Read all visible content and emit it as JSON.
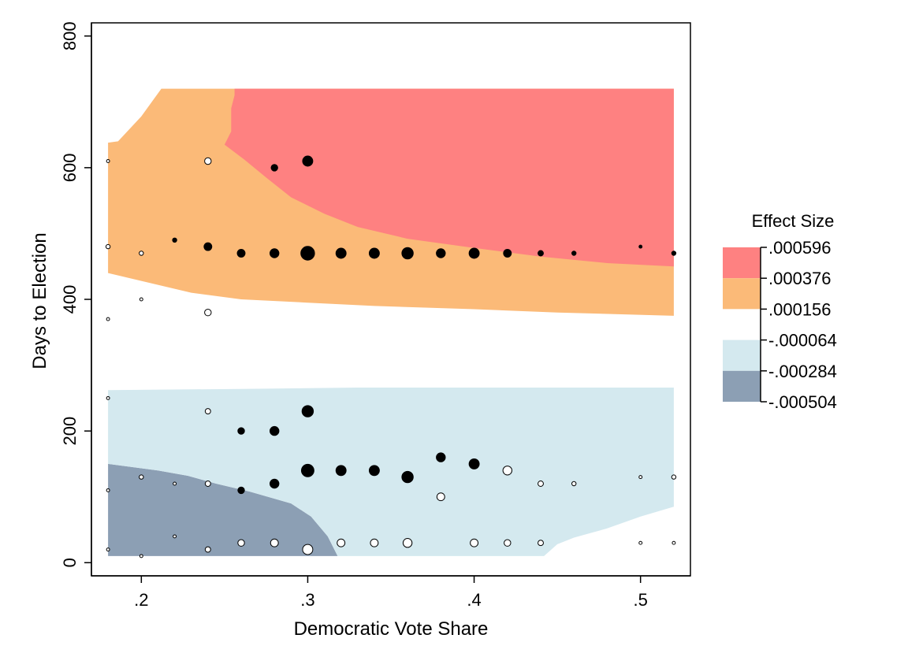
{
  "chart_data": {
    "type": "scatter",
    "subtype": "contour-with-bubbles",
    "xlabel": "Democratic Vote Share",
    "ylabel": "Days to Election",
    "xlim": [
      0.17,
      0.53
    ],
    "ylim": [
      -20,
      820
    ],
    "x_ticks": [
      0.2,
      0.3,
      0.4,
      0.5
    ],
    "x_tick_labels": [
      ".2",
      ".3",
      ".4",
      ".5"
    ],
    "y_ticks": [
      0,
      200,
      400,
      600,
      800
    ],
    "y_tick_labels": [
      "0",
      "200",
      "400",
      "600",
      "800"
    ],
    "grid": false,
    "legend": {
      "title": "Effect Size",
      "placement": "right",
      "bands": [
        {
          "color": "#8c9fb4"
        },
        {
          "color": "#d4e9ef"
        },
        {
          "color": "#ffffff"
        },
        {
          "color": "#fbba78"
        },
        {
          "color": "#fe8181"
        }
      ],
      "breaks": [
        ".000596",
        ".000376",
        ".000156",
        "-.000064",
        "-.000284",
        "-.000504"
      ]
    },
    "contour_regions": [
      {
        "level": "-.000504 to -.000284",
        "color": "#8c9fb4",
        "polygon": [
          [
            0.18,
            10
          ],
          [
            0.318,
            10
          ],
          [
            0.312,
            40
          ],
          [
            0.302,
            70
          ],
          [
            0.29,
            90
          ],
          [
            0.265,
            108
          ],
          [
            0.245,
            120
          ],
          [
            0.228,
            132
          ],
          [
            0.21,
            140
          ],
          [
            0.18,
            150
          ]
        ]
      },
      {
        "level": "-.000284 to -.000064",
        "color": "#d4e9ef",
        "polygon": [
          [
            0.18,
            150
          ],
          [
            0.18,
            262
          ],
          [
            0.26,
            264
          ],
          [
            0.33,
            266
          ],
          [
            0.4,
            266
          ],
          [
            0.47,
            266
          ],
          [
            0.52,
            266
          ],
          [
            0.52,
            85
          ],
          [
            0.5,
            70
          ],
          [
            0.48,
            52
          ],
          [
            0.46,
            38
          ],
          [
            0.45,
            28
          ],
          [
            0.442,
            10
          ],
          [
            0.318,
            10
          ],
          [
            0.312,
            40
          ],
          [
            0.302,
            70
          ],
          [
            0.29,
            90
          ],
          [
            0.265,
            108
          ],
          [
            0.245,
            120
          ],
          [
            0.228,
            132
          ],
          [
            0.21,
            140
          ]
        ]
      },
      {
        "level": ".000156 to .000376",
        "color": "#fbba78",
        "polygon": [
          [
            0.18,
            460
          ],
          [
            0.18,
            638
          ],
          [
            0.186,
            640
          ],
          [
            0.2,
            678
          ],
          [
            0.212,
            720
          ],
          [
            0.52,
            720
          ],
          [
            0.52,
            375
          ],
          [
            0.45,
            380
          ],
          [
            0.4,
            385
          ],
          [
            0.34,
            390
          ],
          [
            0.3,
            395
          ],
          [
            0.26,
            400
          ],
          [
            0.23,
            410
          ],
          [
            0.2,
            428
          ],
          [
            0.18,
            440
          ]
        ]
      },
      {
        "level": ".000376 to .000596",
        "color": "#fe8181",
        "polygon": [
          [
            0.256,
            720
          ],
          [
            0.52,
            720
          ],
          [
            0.52,
            708
          ],
          [
            0.5,
            712
          ],
          [
            0.48,
            718
          ],
          [
            0.52,
            708
          ],
          [
            0.52,
            450
          ],
          [
            0.48,
            455
          ],
          [
            0.44,
            465
          ],
          [
            0.4,
            478
          ],
          [
            0.36,
            492
          ],
          [
            0.33,
            510
          ],
          [
            0.31,
            530
          ],
          [
            0.29,
            555
          ],
          [
            0.275,
            585
          ],
          [
            0.262,
            612
          ],
          [
            0.25,
            635
          ],
          [
            0.254,
            655
          ],
          [
            0.254,
            690
          ],
          [
            0.256,
            710
          ]
        ]
      }
    ],
    "points": [
      {
        "x": 0.18,
        "y": 20,
        "size": 1,
        "filled": false
      },
      {
        "x": 0.18,
        "y": 110,
        "size": 1,
        "filled": false
      },
      {
        "x": 0.18,
        "y": 250,
        "size": 1,
        "filled": false
      },
      {
        "x": 0.18,
        "y": 370,
        "size": 1,
        "filled": false
      },
      {
        "x": 0.18,
        "y": 480,
        "size": 2,
        "filled": false
      },
      {
        "x": 0.18,
        "y": 610,
        "size": 1,
        "filled": false
      },
      {
        "x": 0.2,
        "y": 10,
        "size": 1,
        "filled": false
      },
      {
        "x": 0.2,
        "y": 130,
        "size": 2,
        "filled": false
      },
      {
        "x": 0.2,
        "y": 400,
        "size": 1,
        "filled": false
      },
      {
        "x": 0.2,
        "y": 470,
        "size": 2,
        "filled": false
      },
      {
        "x": 0.22,
        "y": 40,
        "size": 1,
        "filled": false
      },
      {
        "x": 0.22,
        "y": 120,
        "size": 1,
        "filled": false
      },
      {
        "x": 0.22,
        "y": 490,
        "size": 2,
        "filled": true
      },
      {
        "x": 0.24,
        "y": 20,
        "size": 3,
        "filled": false
      },
      {
        "x": 0.24,
        "y": 120,
        "size": 3,
        "filled": false
      },
      {
        "x": 0.24,
        "y": 230,
        "size": 3,
        "filled": false
      },
      {
        "x": 0.24,
        "y": 380,
        "size": 4,
        "filled": false
      },
      {
        "x": 0.24,
        "y": 480,
        "size": 5,
        "filled": true
      },
      {
        "x": 0.24,
        "y": 610,
        "size": 4,
        "filled": false
      },
      {
        "x": 0.26,
        "y": 30,
        "size": 4,
        "filled": false
      },
      {
        "x": 0.26,
        "y": 110,
        "size": 4,
        "filled": true
      },
      {
        "x": 0.26,
        "y": 200,
        "size": 4,
        "filled": true
      },
      {
        "x": 0.26,
        "y": 470,
        "size": 5,
        "filled": true
      },
      {
        "x": 0.28,
        "y": 30,
        "size": 5,
        "filled": false
      },
      {
        "x": 0.28,
        "y": 120,
        "size": 6,
        "filled": true
      },
      {
        "x": 0.28,
        "y": 200,
        "size": 6,
        "filled": true
      },
      {
        "x": 0.28,
        "y": 470,
        "size": 6,
        "filled": true
      },
      {
        "x": 0.28,
        "y": 600,
        "size": 4,
        "filled": true
      },
      {
        "x": 0.3,
        "y": 20,
        "size": 7,
        "filled": false
      },
      {
        "x": 0.3,
        "y": 140,
        "size": 9,
        "filled": true
      },
      {
        "x": 0.3,
        "y": 230,
        "size": 8,
        "filled": true
      },
      {
        "x": 0.3,
        "y": 470,
        "size": 10,
        "filled": true
      },
      {
        "x": 0.3,
        "y": 610,
        "size": 7,
        "filled": true
      },
      {
        "x": 0.32,
        "y": 30,
        "size": 5,
        "filled": false
      },
      {
        "x": 0.32,
        "y": 140,
        "size": 7,
        "filled": true
      },
      {
        "x": 0.32,
        "y": 470,
        "size": 7,
        "filled": true
      },
      {
        "x": 0.34,
        "y": 30,
        "size": 5,
        "filled": false
      },
      {
        "x": 0.34,
        "y": 140,
        "size": 7,
        "filled": true
      },
      {
        "x": 0.34,
        "y": 470,
        "size": 7,
        "filled": true
      },
      {
        "x": 0.36,
        "y": 30,
        "size": 6,
        "filled": false
      },
      {
        "x": 0.36,
        "y": 130,
        "size": 8,
        "filled": true
      },
      {
        "x": 0.36,
        "y": 470,
        "size": 8,
        "filled": true
      },
      {
        "x": 0.38,
        "y": 100,
        "size": 5,
        "filled": false
      },
      {
        "x": 0.38,
        "y": 160,
        "size": 6,
        "filled": true
      },
      {
        "x": 0.38,
        "y": 470,
        "size": 6,
        "filled": true
      },
      {
        "x": 0.4,
        "y": 30,
        "size": 5,
        "filled": false
      },
      {
        "x": 0.4,
        "y": 150,
        "size": 7,
        "filled": true
      },
      {
        "x": 0.4,
        "y": 470,
        "size": 7,
        "filled": true
      },
      {
        "x": 0.42,
        "y": 30,
        "size": 4,
        "filled": false
      },
      {
        "x": 0.42,
        "y": 140,
        "size": 6,
        "filled": false
      },
      {
        "x": 0.42,
        "y": 470,
        "size": 5,
        "filled": true
      },
      {
        "x": 0.44,
        "y": 30,
        "size": 3,
        "filled": false
      },
      {
        "x": 0.44,
        "y": 120,
        "size": 3,
        "filled": false
      },
      {
        "x": 0.44,
        "y": 470,
        "size": 3,
        "filled": true
      },
      {
        "x": 0.46,
        "y": 120,
        "size": 2,
        "filled": false
      },
      {
        "x": 0.46,
        "y": 470,
        "size": 2,
        "filled": true
      },
      {
        "x": 0.5,
        "y": 30,
        "size": 1,
        "filled": false
      },
      {
        "x": 0.5,
        "y": 130,
        "size": 1,
        "filled": false
      },
      {
        "x": 0.5,
        "y": 480,
        "size": 1,
        "filled": true
      },
      {
        "x": 0.52,
        "y": 30,
        "size": 1,
        "filled": false
      },
      {
        "x": 0.52,
        "y": 130,
        "size": 2,
        "filled": false
      },
      {
        "x": 0.52,
        "y": 470,
        "size": 2,
        "filled": true
      }
    ]
  }
}
